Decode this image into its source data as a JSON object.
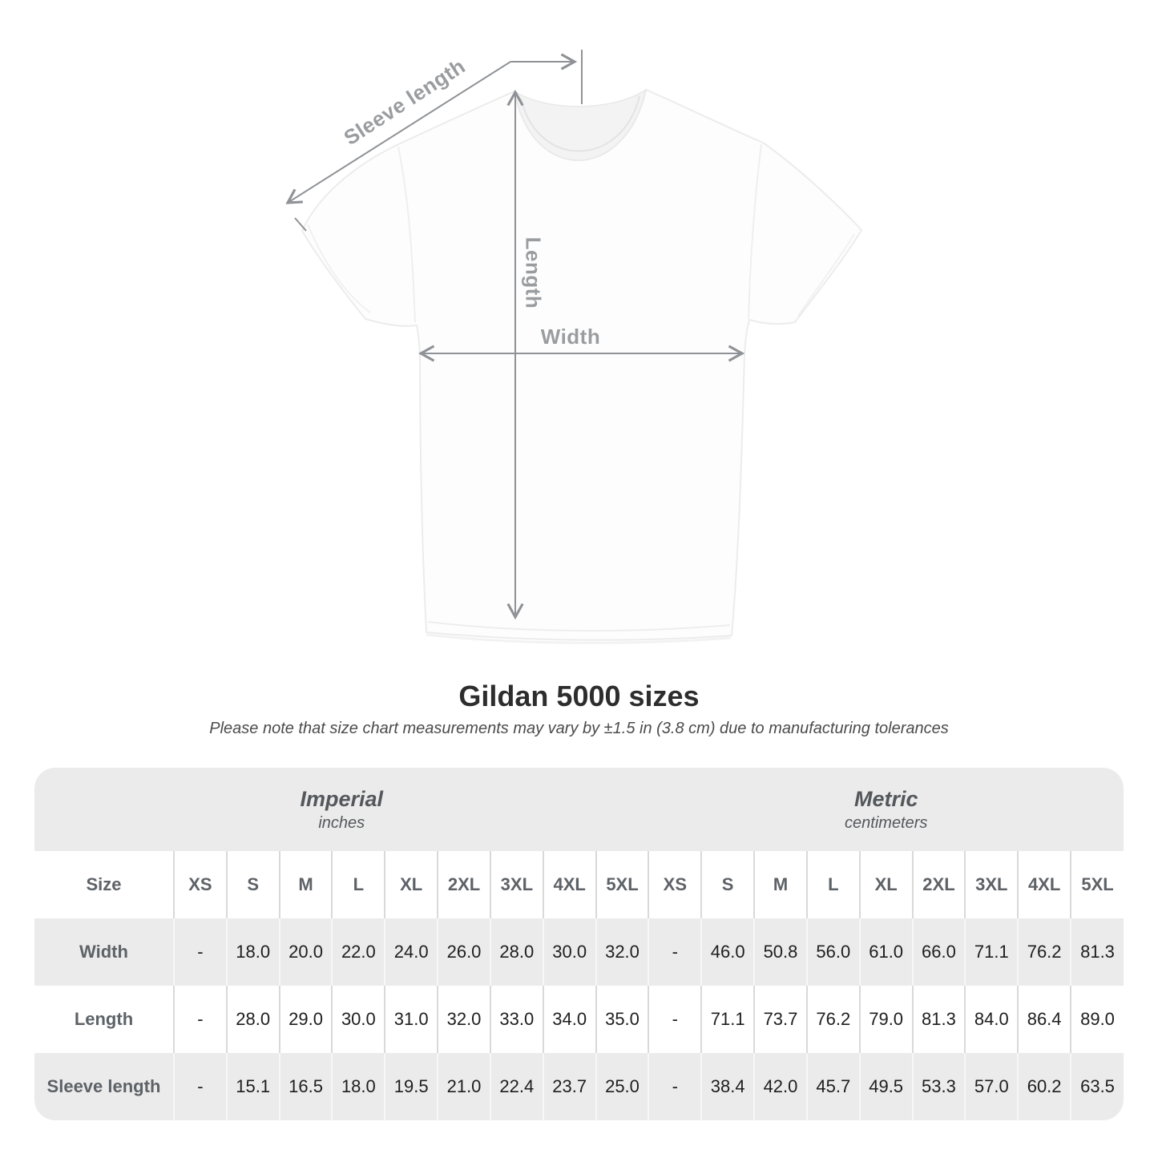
{
  "diagram": {
    "sleeve_length_label": "Sleeve length",
    "length_label": "Length",
    "width_label": "Width"
  },
  "chart_data": {
    "type": "table",
    "title": "Gildan 5000 sizes",
    "subtitle": "Please note that size chart measurements may vary by ±1.5 in (3.8 cm) due to manufacturing tolerances",
    "corner_label": "Size",
    "sections": [
      {
        "label": "Imperial",
        "unit": "inches"
      },
      {
        "label": "Metric",
        "unit": "centimeters"
      }
    ],
    "size_columns": [
      "XS",
      "S",
      "M",
      "L",
      "XL",
      "2XL",
      "3XL",
      "4XL",
      "5XL"
    ],
    "rows": [
      {
        "label": "Width",
        "imperial": [
          "-",
          "18.0",
          "20.0",
          "22.0",
          "24.0",
          "26.0",
          "28.0",
          "30.0",
          "32.0"
        ],
        "metric": [
          "-",
          "46.0",
          "50.8",
          "56.0",
          "61.0",
          "66.0",
          "71.1",
          "76.2",
          "81.3"
        ]
      },
      {
        "label": "Length",
        "imperial": [
          "-",
          "28.0",
          "29.0",
          "30.0",
          "31.0",
          "32.0",
          "33.0",
          "34.0",
          "35.0"
        ],
        "metric": [
          "-",
          "71.1",
          "73.7",
          "76.2",
          "79.0",
          "81.3",
          "84.0",
          "86.4",
          "89.0"
        ]
      },
      {
        "label": "Sleeve length",
        "imperial": [
          "-",
          "15.1",
          "16.5",
          "18.0",
          "19.5",
          "21.0",
          "22.4",
          "23.7",
          "25.0"
        ],
        "metric": [
          "-",
          "38.4",
          "42.0",
          "45.7",
          "49.5",
          "53.3",
          "57.0",
          "60.2",
          "63.5"
        ]
      }
    ]
  },
  "colors": {
    "band_gray": "#ebebeb",
    "row_gray": "#ebebeb",
    "annotation_text": "#9a9da0",
    "dimension_line": "#8f9296",
    "header_text": "#5d6267",
    "value_text": "#1e1e1e",
    "title_text": "#2d2d2d"
  }
}
